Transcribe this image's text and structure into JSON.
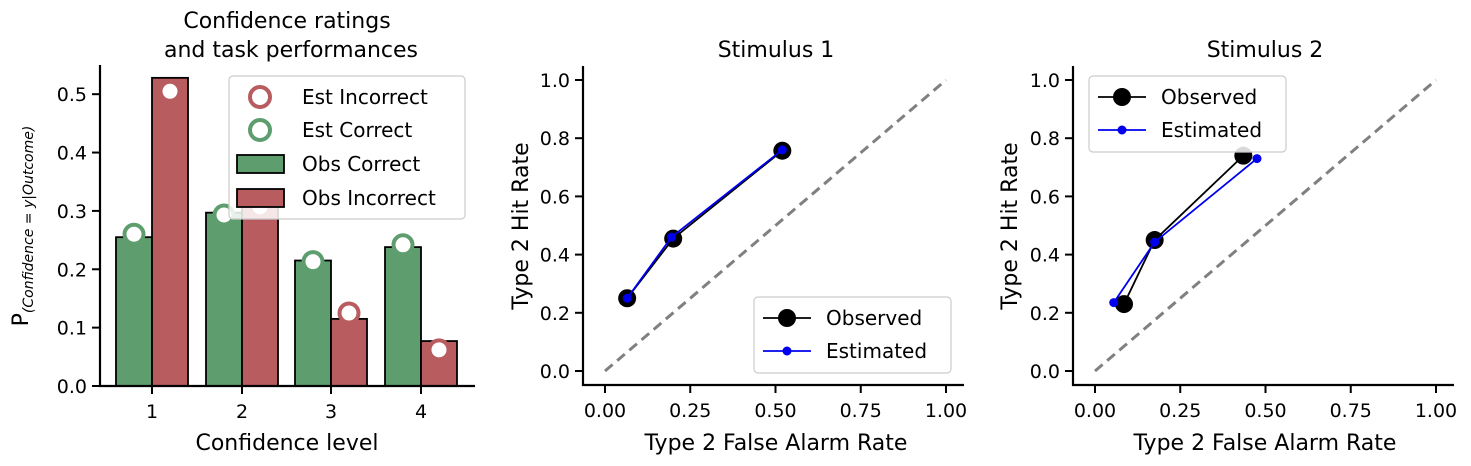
{
  "chart_data": [
    {
      "type": "bar",
      "title_lines": [
        "Confidence ratings",
        "and task performances"
      ],
      "xlabel": "Confidence level",
      "ylabel_main": "P",
      "ylabel_sub": "(Confidence = y|Outcome)",
      "categories": [
        "1",
        "2",
        "3",
        "4"
      ],
      "ylim": [
        0,
        0.55
      ],
      "yticks": [
        0.0,
        0.1,
        0.2,
        0.3,
        0.4,
        0.5
      ],
      "ytick_labels": [
        "0.0",
        "0.1",
        "0.2",
        "0.3",
        "0.4",
        "0.5"
      ],
      "series": [
        {
          "name": "Obs Correct",
          "kind": "bar",
          "color": "#5e9e6e",
          "values": [
            0.255,
            0.297,
            0.215,
            0.238
          ]
        },
        {
          "name": "Obs Incorrect",
          "kind": "bar",
          "color": "#b85c60",
          "values": [
            0.528,
            0.307,
            0.115,
            0.077
          ]
        },
        {
          "name": "Est Correct",
          "kind": "marker",
          "color": "#5e9e6e",
          "values": [
            0.26,
            0.293,
            0.213,
            0.242
          ]
        },
        {
          "name": "Est Incorrect",
          "kind": "marker",
          "color": "#b85c60",
          "values": [
            0.505,
            0.307,
            0.125,
            0.062
          ]
        }
      ],
      "legend": {
        "placement": "top-right",
        "entries": [
          "Est Incorrect",
          "Est Correct",
          "Obs Correct",
          "Obs Incorrect"
        ]
      }
    },
    {
      "type": "line",
      "title": "Stimulus 1",
      "xlabel": "Type 2 False Alarm Rate",
      "ylabel": "Type 2 Hit Rate",
      "xlim": [
        0,
        1
      ],
      "ylim": [
        0,
        1
      ],
      "xticks": [
        0,
        0.25,
        0.5,
        0.75,
        1.0
      ],
      "xtick_labels": [
        "0.00",
        "0.25",
        "0.50",
        "0.75",
        "1.00"
      ],
      "yticks": [
        0,
        0.2,
        0.4,
        0.6,
        0.8,
        1.0
      ],
      "ytick_labels": [
        "0.0",
        "0.2",
        "0.4",
        "0.6",
        "0.8",
        "1.0"
      ],
      "diagonal": {
        "color": "#808080",
        "dashed": true
      },
      "series": [
        {
          "name": "Observed",
          "color": "#000000",
          "x": [
            0.065,
            0.2,
            0.52
          ],
          "y": [
            0.25,
            0.455,
            0.757
          ]
        },
        {
          "name": "Estimated",
          "color": "#0000ee",
          "x": [
            0.065,
            0.195,
            0.52
          ],
          "y": [
            0.25,
            0.46,
            0.76
          ]
        }
      ],
      "legend": {
        "placement": "bottom-right",
        "entries": [
          "Observed",
          "Estimated"
        ]
      }
    },
    {
      "type": "line",
      "title": "Stimulus 2",
      "xlabel": "Type 2 False Alarm Rate",
      "ylabel": "Type 2 Hit Rate",
      "xlim": [
        0,
        1
      ],
      "ylim": [
        0,
        1
      ],
      "xticks": [
        0,
        0.25,
        0.5,
        0.75,
        1.0
      ],
      "xtick_labels": [
        "0.00",
        "0.25",
        "0.50",
        "0.75",
        "1.00"
      ],
      "yticks": [
        0,
        0.2,
        0.4,
        0.6,
        0.8,
        1.0
      ],
      "ytick_labels": [
        "0.0",
        "0.2",
        "0.4",
        "0.6",
        "0.8",
        "1.0"
      ],
      "diagonal": {
        "color": "#808080",
        "dashed": true
      },
      "series": [
        {
          "name": "Observed",
          "color": "#000000",
          "x": [
            0.085,
            0.175,
            0.435
          ],
          "y": [
            0.23,
            0.45,
            0.74
          ]
        },
        {
          "name": "Estimated",
          "color": "#0000ee",
          "x": [
            0.055,
            0.175,
            0.475
          ],
          "y": [
            0.235,
            0.443,
            0.73
          ]
        }
      ],
      "legend": {
        "placement": "top-left",
        "entries": [
          "Observed",
          "Estimated"
        ]
      }
    }
  ]
}
